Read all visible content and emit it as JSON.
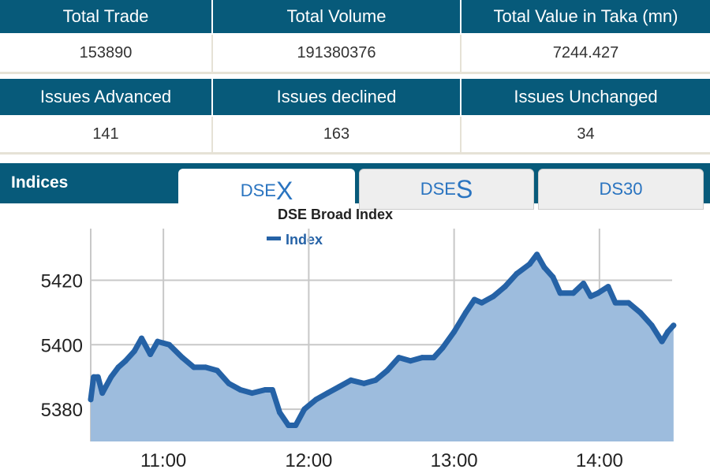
{
  "summary": {
    "headers1": [
      "Total Trade",
      "Total Volume",
      "Total Value in Taka (mn)"
    ],
    "values1": [
      "153890",
      "191380376",
      "7244.427"
    ],
    "headers2": [
      "Issues Advanced",
      "Issues declined",
      "Issues Unchanged"
    ],
    "values2": [
      "141",
      "163",
      "34"
    ]
  },
  "indices": {
    "label": "Indices",
    "tabs": [
      {
        "prefix": "DSE",
        "suffix": "X",
        "active": true
      },
      {
        "prefix": "DSE",
        "suffix": "S",
        "active": false
      },
      {
        "prefix": "DS30",
        "suffix": "",
        "active": false
      }
    ]
  },
  "colors": {
    "header": "#075a7a",
    "line": "#2562a6",
    "fill": "#9dbcdd",
    "grid": "#c8c8c8"
  },
  "chart_data": {
    "type": "area",
    "title": "DSE Broad Index",
    "legend": [
      "Index"
    ],
    "legend_position": "top-center",
    "xlabel": "",
    "ylabel": "",
    "xlim": [
      10.5,
      14.5
    ],
    "ylim": [
      5370,
      5436
    ],
    "x_ticks": [
      11,
      12,
      13,
      14
    ],
    "x_tick_labels": [
      "11:00",
      "12:00",
      "13:00",
      "14:00"
    ],
    "y_ticks": [
      5380,
      5400,
      5420
    ],
    "y_tick_labels": [
      "5380",
      "5400",
      "5420"
    ],
    "grid": true,
    "series": [
      {
        "name": "Index",
        "x": [
          10.5,
          10.52,
          10.55,
          10.58,
          10.64,
          10.69,
          10.74,
          10.8,
          10.85,
          10.91,
          10.96,
          11.04,
          11.13,
          11.21,
          11.29,
          11.37,
          11.45,
          11.53,
          11.61,
          11.7,
          11.75,
          11.8,
          11.86,
          11.91,
          11.97,
          12.05,
          12.13,
          12.21,
          12.29,
          12.38,
          12.46,
          12.54,
          12.62,
          12.7,
          12.78,
          12.86,
          12.92,
          13.0,
          13.08,
          13.14,
          13.19,
          13.27,
          13.35,
          13.43,
          13.52,
          13.57,
          13.62,
          13.68,
          13.73,
          13.82,
          13.89,
          13.94,
          13.99,
          14.06,
          14.11,
          14.2,
          14.28,
          14.36,
          14.43,
          14.47,
          14.51
        ],
        "values": [
          5383,
          5390,
          5390,
          5385,
          5390,
          5393,
          5395,
          5398,
          5402,
          5397,
          5401,
          5400,
          5396,
          5393,
          5393,
          5392,
          5388,
          5386,
          5385,
          5386,
          5386,
          5379,
          5375,
          5375,
          5380,
          5383,
          5385,
          5387,
          5389,
          5388,
          5389,
          5392,
          5396,
          5395,
          5396,
          5396,
          5399,
          5404,
          5410,
          5414,
          5413,
          5415,
          5418,
          5422,
          5425,
          5428,
          5424,
          5421,
          5416,
          5416,
          5419,
          5415,
          5416,
          5418,
          5413,
          5413,
          5410,
          5406,
          5401,
          5404,
          5406
        ]
      }
    ]
  }
}
